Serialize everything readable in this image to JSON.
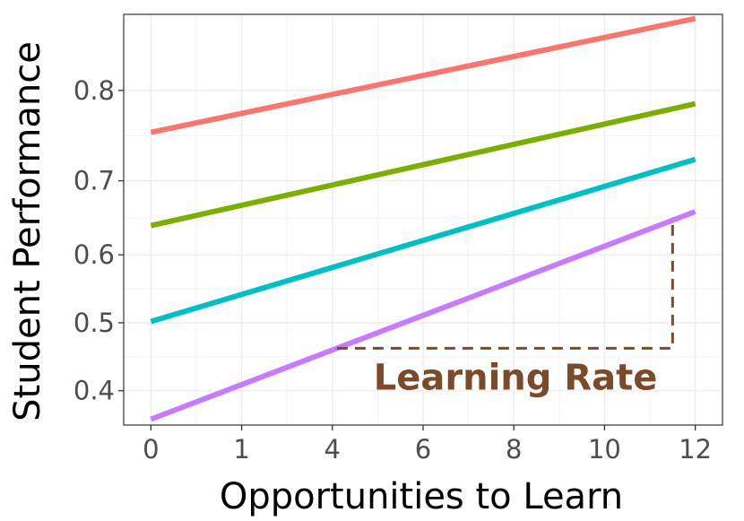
{
  "chart_data": {
    "type": "line",
    "xlabel": "Opportunities to Learn",
    "ylabel": "Student Performance",
    "x_ticks": [
      {
        "value": 0,
        "label": "0"
      },
      {
        "value": 1,
        "label": "1"
      },
      {
        "value": 2,
        "label": "4"
      },
      {
        "value": 3,
        "label": "6"
      },
      {
        "value": 4,
        "label": "8"
      },
      {
        "value": 5,
        "label": "10"
      },
      {
        "value": 6,
        "label": "12"
      }
    ],
    "y_ticks": [
      0.4,
      0.5,
      0.6,
      0.7,
      0.8
    ],
    "y_scale": "logit",
    "ylim": [
      0.352,
      0.863
    ],
    "xlim": [
      -0.3,
      6.3
    ],
    "grid": true,
    "legend": "none",
    "series": [
      {
        "color": "#F8766D",
        "points": [
          [
            0,
            0.757
          ],
          [
            6,
            0.86
          ]
        ]
      },
      {
        "color": "#7CAE00",
        "points": [
          [
            0,
            0.641
          ],
          [
            6,
            0.787
          ]
        ]
      },
      {
        "color": "#00BFC4",
        "points": [
          [
            0,
            0.502
          ],
          [
            6,
            0.726
          ]
        ]
      },
      {
        "color": "#C77CFF",
        "points": [
          [
            0,
            0.36
          ],
          [
            6,
            0.66
          ]
        ]
      }
    ],
    "annotations": [
      {
        "text": "Learning Rate",
        "color": "#7B4A28",
        "bracket": {
          "x_start": 2.05,
          "x_end": 5.75,
          "y_low": 0.462,
          "y_high": 0.652
        }
      }
    ]
  }
}
